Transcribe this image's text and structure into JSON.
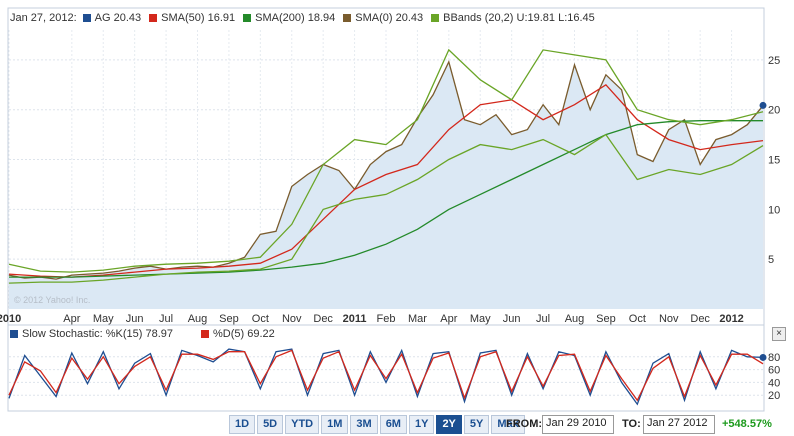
{
  "legend": {
    "date": "Jan 27, 2012:",
    "items": [
      {
        "label": "AG 20.43",
        "color": "#1f4e91"
      },
      {
        "label": "SMA(50) 16.91",
        "color": "#d3281c"
      },
      {
        "label": "SMA(200) 18.94",
        "color": "#248a2a"
      },
      {
        "label": "SMA(0) 20.43",
        "color": "#7a5c2e"
      },
      {
        "label": "BBands (20,2) U:19.81 L:16.45",
        "color": "#6aa527"
      }
    ]
  },
  "copyright": "© 2012 Yahoo! Inc.",
  "stoch_legend": {
    "k": {
      "label": "Slow Stochastic: %K(15) 78.97",
      "color": "#1f4e91"
    },
    "d": {
      "label": "%D(5) 69.22",
      "color": "#d3281c"
    }
  },
  "close_label": "×",
  "ranges": [
    "1D",
    "5D",
    "YTD",
    "1M",
    "3M",
    "6M",
    "1Y",
    "2Y",
    "5Y",
    "Max"
  ],
  "active_range": "2Y",
  "from_label": "FROM:",
  "from_value": "Jan 29 2010",
  "to_label": "TO:",
  "to_value": "Jan 27 2012",
  "change": "+548.57%",
  "chart_data": [
    {
      "type": "line",
      "title": "",
      "y_ticks": [
        5,
        10,
        15,
        20,
        25
      ],
      "ylim": [
        0,
        28
      ],
      "x_tick_labels": [
        "2010",
        "Apr",
        "May",
        "Jun",
        "Jul",
        "Aug",
        "Sep",
        "Oct",
        "Nov",
        "Dec",
        "2011",
        "Feb",
        "Mar",
        "Apr",
        "May",
        "Jun",
        "Jul",
        "Aug",
        "Sep",
        "Oct",
        "Nov",
        "Dec",
        "2012"
      ],
      "x_tick_months": [
        0,
        2,
        3,
        4,
        5,
        6,
        7,
        8,
        9,
        10,
        11,
        12,
        13,
        14,
        15,
        16,
        17,
        18,
        19,
        20,
        21,
        22,
        23
      ],
      "xlim": [
        0,
        24
      ],
      "grid": true,
      "series": [
        {
          "name": "AG",
          "color": "#7a5c2e",
          "area": true,
          "area_color": "#dbe8f4",
          "x": [
            0,
            0.5,
            1,
            1.5,
            2,
            2.5,
            3,
            3.5,
            4,
            4.5,
            5,
            5.5,
            6,
            6.5,
            7,
            7.5,
            8,
            8.5,
            9,
            9.5,
            10,
            10.5,
            11,
            11.5,
            12,
            12.5,
            13,
            13.5,
            14,
            14.5,
            15,
            15.5,
            16,
            16.5,
            17,
            17.5,
            18,
            18.5,
            19,
            19.5,
            20,
            20.5,
            21,
            21.5,
            22,
            22.5,
            23,
            23.5,
            24
          ],
          "values": [
            3.4,
            3.1,
            3.2,
            3.0,
            3.4,
            3.5,
            3.6,
            3.8,
            4.1,
            4.3,
            4.0,
            4.2,
            4.3,
            4.2,
            4.6,
            5.2,
            7.5,
            7.8,
            12.3,
            13.5,
            14.5,
            13.9,
            12.0,
            14.5,
            15.8,
            16.5,
            19.2,
            21.5,
            24.8,
            19.0,
            18.5,
            19.5,
            17.5,
            18.0,
            20.5,
            18.5,
            24.5,
            20.0,
            23.5,
            22.0,
            15.5,
            14.8,
            18.0,
            19.0,
            14.5,
            17.0,
            17.5,
            18.5,
            20.4
          ]
        },
        {
          "name": "SMA(50)",
          "color": "#d3281c",
          "x": [
            0,
            1,
            2,
            3,
            4,
            5,
            6,
            7,
            8,
            9,
            10,
            11,
            12,
            13,
            14,
            15,
            16,
            17,
            18,
            19,
            20,
            21,
            22,
            23,
            24
          ],
          "values": [
            3.5,
            3.3,
            3.2,
            3.4,
            3.7,
            4.0,
            4.1,
            4.3,
            4.6,
            6.0,
            9.0,
            12.0,
            13.5,
            14.5,
            18.0,
            20.5,
            21.0,
            19.0,
            20.5,
            22.5,
            19.0,
            17.0,
            16.0,
            16.5,
            16.9
          ]
        },
        {
          "name": "SMA(200)",
          "color": "#248a2a",
          "x": [
            0,
            1,
            2,
            3,
            4,
            5,
            6,
            7,
            8,
            9,
            10,
            11,
            12,
            13,
            14,
            15,
            16,
            17,
            18,
            19,
            20,
            21,
            22,
            23,
            24
          ],
          "values": [
            3.2,
            3.2,
            3.2,
            3.3,
            3.4,
            3.5,
            3.6,
            3.7,
            3.9,
            4.2,
            4.6,
            5.4,
            6.5,
            8.0,
            10.0,
            11.5,
            13.0,
            14.5,
            16.0,
            17.5,
            18.5,
            18.8,
            18.9,
            18.9,
            18.9
          ]
        },
        {
          "name": "BBands Upper",
          "color": "#6aa527",
          "x": [
            0,
            1,
            2,
            3,
            4,
            5,
            6,
            7,
            8,
            9,
            10,
            11,
            12,
            13,
            14,
            15,
            16,
            17,
            18,
            19,
            20,
            21,
            22,
            23,
            24
          ],
          "values": [
            4.5,
            3.8,
            3.7,
            3.9,
            4.3,
            4.5,
            4.6,
            4.8,
            5.2,
            8.5,
            14.5,
            17.0,
            16.5,
            19.0,
            26.0,
            23.0,
            21.0,
            26.0,
            25.5,
            25.0,
            20.0,
            19.0,
            18.5,
            19.0,
            19.8
          ]
        },
        {
          "name": "BBands Lower",
          "color": "#6aa527",
          "x": [
            0,
            1,
            2,
            3,
            4,
            5,
            6,
            7,
            8,
            9,
            10,
            11,
            12,
            13,
            14,
            15,
            16,
            17,
            18,
            19,
            20,
            21,
            22,
            23,
            24
          ],
          "values": [
            2.6,
            2.7,
            2.7,
            2.9,
            3.2,
            3.5,
            3.7,
            3.8,
            4.0,
            5.0,
            10.0,
            11.0,
            11.5,
            13.0,
            15.0,
            16.5,
            16.0,
            17.0,
            15.5,
            17.5,
            13.0,
            14.0,
            13.5,
            14.5,
            16.4
          ]
        }
      ],
      "last_point": {
        "x": 24,
        "value": 20.43,
        "color": "#1f4e91"
      }
    },
    {
      "type": "line",
      "title": "Slow Stochastic",
      "y_ticks": [
        20,
        40,
        60,
        80
      ],
      "ylim": [
        0,
        100
      ],
      "xlim": [
        0,
        24
      ],
      "grid": true,
      "series": [
        {
          "name": "%K(15)",
          "color": "#1f4e91",
          "x": [
            0,
            0.5,
            1,
            1.5,
            2,
            2.5,
            3,
            3.5,
            4,
            4.5,
            5,
            5.5,
            6,
            6.5,
            7,
            7.5,
            8,
            8.5,
            9,
            9.5,
            10,
            10.5,
            11,
            11.5,
            12,
            12.5,
            13,
            13.5,
            14,
            14.5,
            15,
            15.5,
            16,
            16.5,
            17,
            17.5,
            18,
            18.5,
            19,
            19.5,
            20,
            20.5,
            21,
            21.5,
            22,
            22.5,
            23,
            23.5,
            24
          ],
          "values": [
            15,
            82,
            50,
            18,
            86,
            38,
            88,
            30,
            70,
            85,
            20,
            90,
            82,
            72,
            92,
            88,
            30,
            88,
            92,
            20,
            85,
            90,
            20,
            88,
            40,
            90,
            18,
            85,
            88,
            10,
            86,
            90,
            20,
            85,
            30,
            88,
            82,
            20,
            88,
            40,
            6,
            70,
            85,
            12,
            88,
            30,
            90,
            80,
            79
          ]
        },
        {
          "name": "%D(5)",
          "color": "#d3281c",
          "x": [
            0,
            0.5,
            1,
            1.5,
            2,
            2.5,
            3,
            3.5,
            4,
            4.5,
            5,
            5.5,
            6,
            6.5,
            7,
            7.5,
            8,
            8.5,
            9,
            9.5,
            10,
            10.5,
            11,
            11.5,
            12,
            12.5,
            13,
            13.5,
            14,
            14.5,
            15,
            15.5,
            16,
            16.5,
            17,
            17.5,
            18,
            18.5,
            19,
            19.5,
            20,
            20.5,
            21,
            21.5,
            22,
            22.5,
            23,
            23.5,
            24
          ],
          "values": [
            20,
            72,
            58,
            24,
            78,
            45,
            80,
            38,
            65,
            80,
            28,
            84,
            84,
            76,
            88,
            88,
            38,
            80,
            90,
            28,
            78,
            88,
            28,
            82,
            46,
            84,
            24,
            78,
            86,
            16,
            80,
            88,
            26,
            80,
            34,
            82,
            84,
            26,
            82,
            46,
            12,
            62,
            80,
            18,
            82,
            36,
            84,
            84,
            69
          ]
        }
      ],
      "last_point": {
        "x": 24,
        "value": 78.97,
        "color": "#1f4e91"
      }
    }
  ]
}
